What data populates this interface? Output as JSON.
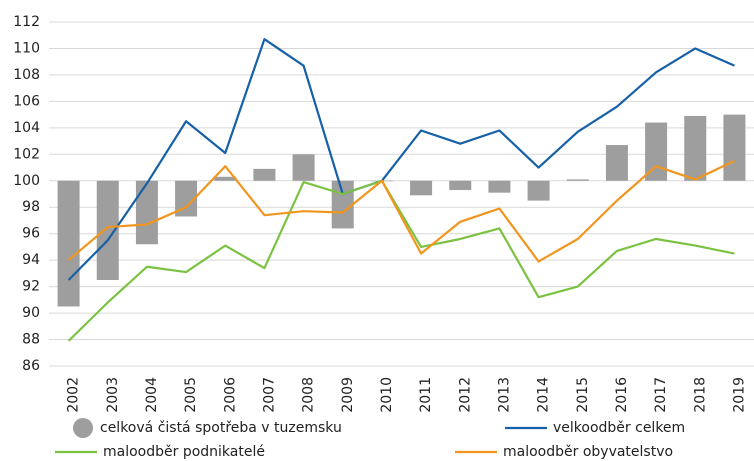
{
  "chart_data": {
    "type": "bar_line",
    "categories": [
      "2002",
      "2003",
      "2004",
      "2005",
      "2006",
      "2007",
      "2008",
      "2009",
      "2010",
      "2011",
      "2012",
      "2013",
      "2014",
      "2015",
      "2016",
      "2017",
      "2018",
      "2019"
    ],
    "bar_base": 100,
    "bars": {
      "name": "celková čistá spotřeba v tuzemsku",
      "color": "#9e9e9e",
      "values": [
        90.5,
        92.5,
        95.2,
        97.3,
        100.3,
        100.9,
        102.0,
        96.4,
        100.0,
        98.9,
        99.3,
        99.1,
        98.5,
        100.1,
        102.7,
        104.4,
        104.9,
        105.0
      ]
    },
    "series": [
      {
        "name": "velkoodběr celkem",
        "color": "#1660a8",
        "values": [
          92.5,
          95.5,
          99.8,
          104.5,
          102.1,
          110.7,
          108.7,
          99.0,
          100.0,
          103.8,
          102.8,
          103.8,
          101.0,
          103.7,
          105.6,
          108.2,
          110.0,
          108.7
        ]
      },
      {
        "name": "maloodběr podnikatelé",
        "color": "#7cc242",
        "values": [
          87.9,
          90.8,
          93.5,
          93.1,
          95.1,
          93.4,
          99.9,
          99.0,
          100.0,
          95.0,
          95.6,
          96.4,
          91.2,
          92.0,
          94.7,
          95.6,
          95.1,
          94.5
        ]
      },
      {
        "name": "maloodběr obyvatelstvo",
        "color": "#f0961e",
        "values": [
          94.0,
          96.5,
          96.7,
          98.0,
          101.1,
          97.4,
          97.7,
          97.6,
          100.0,
          94.5,
          96.9,
          97.9,
          93.9,
          95.6,
          98.5,
          101.1,
          100.1,
          101.5
        ]
      }
    ],
    "ylim": [
      86,
      112
    ],
    "yticks": [
      86,
      88,
      90,
      92,
      94,
      96,
      98,
      100,
      102,
      104,
      106,
      108,
      110,
      112
    ],
    "grid": true
  }
}
